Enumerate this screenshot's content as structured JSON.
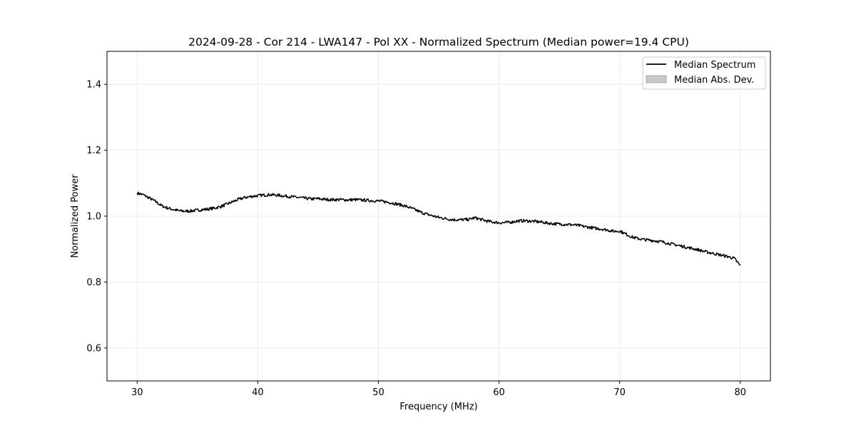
{
  "chart_data": {
    "type": "line",
    "title": "2024-09-28 - Cor 214 - LWA147 - Pol XX - Normalized Spectrum (Median power=19.4 CPU)",
    "xlabel": "Frequency (MHz)",
    "ylabel": "Normalized Power",
    "xlim": [
      27.5,
      82.5
    ],
    "ylim": [
      0.5,
      1.5
    ],
    "xticks": [
      30,
      40,
      50,
      60,
      70,
      80
    ],
    "yticks": [
      0.6,
      0.8,
      1.0,
      1.2,
      1.4
    ],
    "xtick_labels": [
      "30",
      "40",
      "50",
      "60",
      "70",
      "80"
    ],
    "ytick_labels": [
      "0.6",
      "0.8",
      "1.0",
      "1.2",
      "1.4"
    ],
    "grid": true,
    "legend_position": "top-right",
    "legend": [
      {
        "label": "Median Spectrum",
        "type": "line",
        "color": "#000000"
      },
      {
        "label": "Median Abs. Dev.",
        "type": "patch",
        "color": "#c8c8c8"
      }
    ],
    "series": [
      {
        "name": "Median Spectrum",
        "color": "#000000",
        "x": [
          30,
          30.5,
          31,
          31.5,
          32,
          32.5,
          33,
          33.5,
          34,
          34.5,
          35,
          35.5,
          36,
          36.5,
          37,
          37.5,
          38,
          38.5,
          39,
          39.5,
          40,
          40.5,
          41,
          41.5,
          42,
          42.5,
          43,
          43.5,
          44,
          44.5,
          45,
          45.5,
          46,
          46.5,
          47,
          47.5,
          48,
          48.5,
          49,
          49.5,
          50,
          50.5,
          51,
          51.5,
          52,
          52.5,
          53,
          53.5,
          54,
          54.5,
          55,
          55.5,
          56,
          56.5,
          57,
          57.5,
          58,
          58.5,
          59,
          59.5,
          60,
          60.5,
          61,
          61.5,
          62,
          62.5,
          63,
          63.5,
          64,
          64.5,
          65,
          65.5,
          66,
          66.5,
          67,
          67.5,
          68,
          68.5,
          69,
          69.5,
          70,
          70.5,
          71,
          71.5,
          72,
          72.5,
          73,
          73.5,
          74,
          74.5,
          75,
          75.5,
          76,
          76.5,
          77,
          77.5,
          78,
          78.5,
          79,
          79.5,
          80
        ],
        "y": [
          1.07,
          1.065,
          1.055,
          1.045,
          1.032,
          1.025,
          1.02,
          1.016,
          1.015,
          1.016,
          1.018,
          1.02,
          1.022,
          1.025,
          1.03,
          1.037,
          1.045,
          1.052,
          1.057,
          1.06,
          1.062,
          1.064,
          1.065,
          1.064,
          1.062,
          1.06,
          1.058,
          1.056,
          1.054,
          1.052,
          1.053,
          1.051,
          1.05,
          1.05,
          1.05,
          1.049,
          1.05,
          1.049,
          1.048,
          1.047,
          1.046,
          1.044,
          1.041,
          1.037,
          1.033,
          1.027,
          1.02,
          1.012,
          1.006,
          1.001,
          0.996,
          0.993,
          0.99,
          0.989,
          0.989,
          0.99,
          0.995,
          0.99,
          0.985,
          0.982,
          0.98,
          0.98,
          0.982,
          0.985,
          0.986,
          0.985,
          0.984,
          0.982,
          0.979,
          0.977,
          0.976,
          0.975,
          0.974,
          0.972,
          0.969,
          0.966,
          0.963,
          0.961,
          0.958,
          0.954,
          0.955,
          0.946,
          0.937,
          0.932,
          0.929,
          0.927,
          0.925,
          0.922,
          0.918,
          0.914,
          0.91,
          0.906,
          0.902,
          0.898,
          0.893,
          0.889,
          0.885,
          0.881,
          0.877,
          0.872,
          0.85
        ]
      }
    ]
  }
}
